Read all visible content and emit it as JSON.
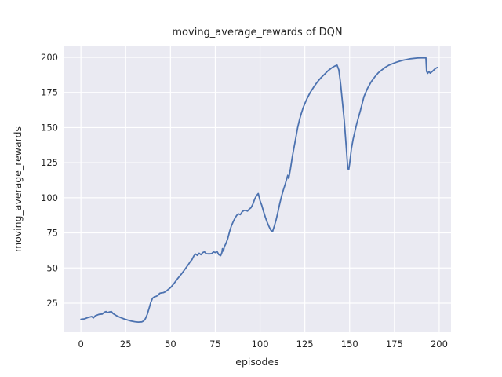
{
  "figure": {
    "kind": "matplotlib-seaborn-line-plot"
  },
  "chart_data": {
    "type": "line",
    "title": "moving_average_rewards of DQN",
    "xlabel": "episodes",
    "ylabel": "moving_average_rewards",
    "x_ticks": [
      0,
      25,
      50,
      75,
      100,
      125,
      150,
      175,
      200
    ],
    "y_ticks": [
      25,
      50,
      75,
      100,
      125,
      150,
      175,
      200
    ],
    "xlim": [
      -9.7,
      206.6
    ],
    "ylim": [
      4.3,
      208.4
    ],
    "grid": true,
    "legend_position": "none",
    "style": {
      "line_color": "#4c72b0",
      "plot_bg": "#eaeaf2",
      "grid_color": "#ffffff",
      "text_color": "#262626",
      "fig_bg": "#ffffff"
    },
    "series": [
      {
        "name": "moving_average_rewards",
        "points": [
          [
            0,
            13.5
          ],
          [
            2,
            13.8
          ],
          [
            4,
            14.8
          ],
          [
            6,
            15.5
          ],
          [
            7,
            14.5
          ],
          [
            8,
            16
          ],
          [
            10,
            17
          ],
          [
            12,
            17.3
          ],
          [
            13,
            18.5
          ],
          [
            14,
            19
          ],
          [
            15,
            18.3
          ],
          [
            16,
            18.8
          ],
          [
            17,
            19
          ],
          [
            18,
            17.5
          ],
          [
            20,
            16
          ],
          [
            22,
            14.8
          ],
          [
            24,
            13.8
          ],
          [
            26,
            13
          ],
          [
            28,
            12.3
          ],
          [
            30,
            11.8
          ],
          [
            32,
            11.5
          ],
          [
            34,
            11.7
          ],
          [
            35,
            12.3
          ],
          [
            36,
            14
          ],
          [
            37,
            17
          ],
          [
            38,
            21
          ],
          [
            39,
            25.5
          ],
          [
            40,
            28.5
          ],
          [
            41,
            29.5
          ],
          [
            42,
            29.8
          ],
          [
            43,
            30.5
          ],
          [
            44,
            32
          ],
          [
            45,
            32.3
          ],
          [
            46,
            32.5
          ],
          [
            47,
            33
          ],
          [
            48,
            34
          ],
          [
            49,
            35
          ],
          [
            50,
            36
          ],
          [
            52,
            39
          ],
          [
            54,
            42.5
          ],
          [
            56,
            45.5
          ],
          [
            58,
            49
          ],
          [
            60,
            52.5
          ],
          [
            61,
            54.5
          ],
          [
            62,
            56
          ],
          [
            63,
            58.5
          ],
          [
            64,
            60
          ],
          [
            65,
            59
          ],
          [
            66,
            60.5
          ],
          [
            67,
            59.5
          ],
          [
            68,
            61
          ],
          [
            69,
            61.5
          ],
          [
            70,
            60.2
          ],
          [
            71,
            60.1
          ],
          [
            72,
            60.1
          ],
          [
            73,
            60.3
          ],
          [
            74,
            61.5
          ],
          [
            75,
            61
          ],
          [
            76,
            61.8
          ],
          [
            77,
            59.5
          ],
          [
            78,
            58.8
          ],
          [
            78.7,
            61
          ],
          [
            79,
            63.8
          ],
          [
            79.6,
            62
          ],
          [
            80,
            65
          ],
          [
            81,
            67.5
          ],
          [
            82,
            71
          ],
          [
            83,
            76
          ],
          [
            84,
            80
          ],
          [
            85,
            83
          ],
          [
            86,
            85.5
          ],
          [
            87,
            87.5
          ],
          [
            88,
            88.5
          ],
          [
            89,
            88
          ],
          [
            90,
            90
          ],
          [
            91,
            91
          ],
          [
            92,
            91
          ],
          [
            93,
            90.5
          ],
          [
            94,
            92
          ],
          [
            95,
            93
          ],
          [
            96,
            95.5
          ],
          [
            97,
            99
          ],
          [
            98,
            101.5
          ],
          [
            99,
            103
          ],
          [
            100,
            98
          ],
          [
            101,
            94.5
          ],
          [
            102,
            90
          ],
          [
            103,
            86
          ],
          [
            104,
            82.5
          ],
          [
            105,
            79.5
          ],
          [
            106,
            77
          ],
          [
            107,
            76
          ],
          [
            108,
            80
          ],
          [
            109,
            84.5
          ],
          [
            110,
            90
          ],
          [
            111,
            96
          ],
          [
            112,
            101
          ],
          [
            113,
            105.5
          ],
          [
            114,
            109.5
          ],
          [
            115,
            114
          ],
          [
            115.5,
            116
          ],
          [
            116,
            113.8
          ],
          [
            117,
            121
          ],
          [
            118,
            129
          ],
          [
            119,
            136
          ],
          [
            120,
            143
          ],
          [
            121,
            150
          ],
          [
            122,
            155.5
          ],
          [
            123,
            160
          ],
          [
            124,
            164
          ],
          [
            125,
            167
          ],
          [
            126,
            170
          ],
          [
            127,
            172.5
          ],
          [
            128,
            175
          ],
          [
            130,
            179
          ],
          [
            132,
            182.5
          ],
          [
            134,
            185.5
          ],
          [
            136,
            188
          ],
          [
            138,
            190.5
          ],
          [
            140,
            192.5
          ],
          [
            141,
            193.3
          ],
          [
            142,
            194
          ],
          [
            143,
            194.5
          ],
          [
            144,
            191
          ],
          [
            145,
            181
          ],
          [
            146,
            168
          ],
          [
            147,
            155
          ],
          [
            148,
            138
          ],
          [
            149,
            121
          ],
          [
            149.5,
            120
          ],
          [
            150,
            124
          ],
          [
            151,
            135
          ],
          [
            152,
            142
          ],
          [
            154,
            153
          ],
          [
            156,
            162
          ],
          [
            158,
            172
          ],
          [
            160,
            178
          ],
          [
            162,
            182.5
          ],
          [
            164,
            186
          ],
          [
            166,
            189
          ],
          [
            168,
            191
          ],
          [
            170,
            193
          ],
          [
            172,
            194.5
          ],
          [
            174,
            195.5
          ],
          [
            176,
            196.5
          ],
          [
            178,
            197.3
          ],
          [
            180,
            198
          ],
          [
            182,
            198.5
          ],
          [
            184,
            199
          ],
          [
            186,
            199.3
          ],
          [
            188,
            199.5
          ],
          [
            190,
            199.6
          ],
          [
            192.6,
            199.7
          ],
          [
            193,
            190
          ],
          [
            193.6,
            188.6
          ],
          [
            194.3,
            190
          ],
          [
            195,
            188.8
          ],
          [
            196,
            189.8
          ],
          [
            197,
            191
          ],
          [
            198,
            192.2
          ],
          [
            199,
            192.8
          ]
        ]
      }
    ]
  }
}
